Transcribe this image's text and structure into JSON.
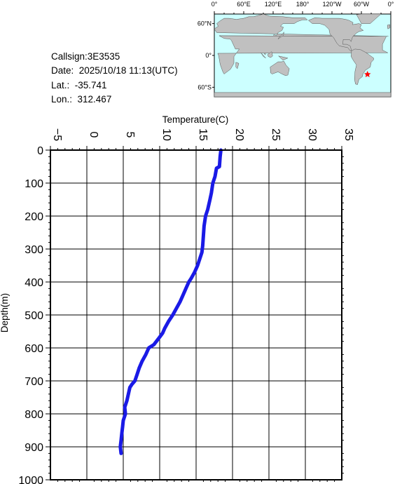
{
  "info": {
    "callsign": "Callsign:3E3535",
    "date": "Date:  2025/10/18 11:13(UTC)",
    "lat": "Lat.:  -35.741",
    "lon": "Lon.:  312.467"
  },
  "map": {
    "lon_labels": [
      "0°",
      "60°E",
      "120°E",
      "180°",
      "120°W",
      "60°W",
      "0°"
    ],
    "lat_labels": [
      "60°N",
      "0°",
      "60°S"
    ],
    "marker_lon": 312.467,
    "marker_lat": -35.741,
    "marker_color": "#ff0000",
    "ocean_color": "#ccffff",
    "land_color": "#c0c0c0"
  },
  "chart_data": {
    "type": "line",
    "xlabel": "Temperature(C)",
    "ylabel": "Depth(m)",
    "xlim": [
      -5,
      35
    ],
    "ylim": [
      1000,
      0
    ],
    "x_ticks": [
      "-5",
      "0",
      "5",
      "10",
      "15",
      "20",
      "25",
      "30",
      "35"
    ],
    "y_ticks": [
      "0",
      "100",
      "200",
      "300",
      "400",
      "500",
      "600",
      "700",
      "800",
      "900",
      "1000"
    ],
    "grid": true,
    "line_color": "#1a1ae6",
    "series": [
      {
        "temperature": [
          18.4,
          18.3,
          18.2,
          17.8,
          17.6,
          17.3,
          17.1,
          16.9,
          16.6,
          16.3,
          16.1,
          16.0,
          15.9,
          15.8,
          15.5,
          15.2,
          14.8,
          14.3,
          14.0,
          13.6,
          13.2,
          12.8,
          12.3,
          11.8,
          11.2,
          10.7,
          10.4,
          9.9,
          9.2,
          8.5,
          8.1,
          7.6,
          7.2,
          6.9,
          6.6,
          6.2,
          5.9,
          5.7,
          5.5,
          5.2,
          5.3,
          5.0,
          4.9,
          4.8,
          4.7,
          4.6,
          4.7
        ],
        "depth": [
          0,
          20,
          50,
          55,
          80,
          100,
          130,
          150,
          180,
          200,
          230,
          260,
          290,
          310,
          330,
          350,
          370,
          390,
          400,
          420,
          440,
          460,
          480,
          500,
          520,
          540,
          555,
          570,
          590,
          600,
          620,
          640,
          660,
          680,
          700,
          710,
          720,
          740,
          760,
          780,
          800,
          820,
          840,
          860,
          880,
          900,
          920
        ]
      }
    ]
  }
}
